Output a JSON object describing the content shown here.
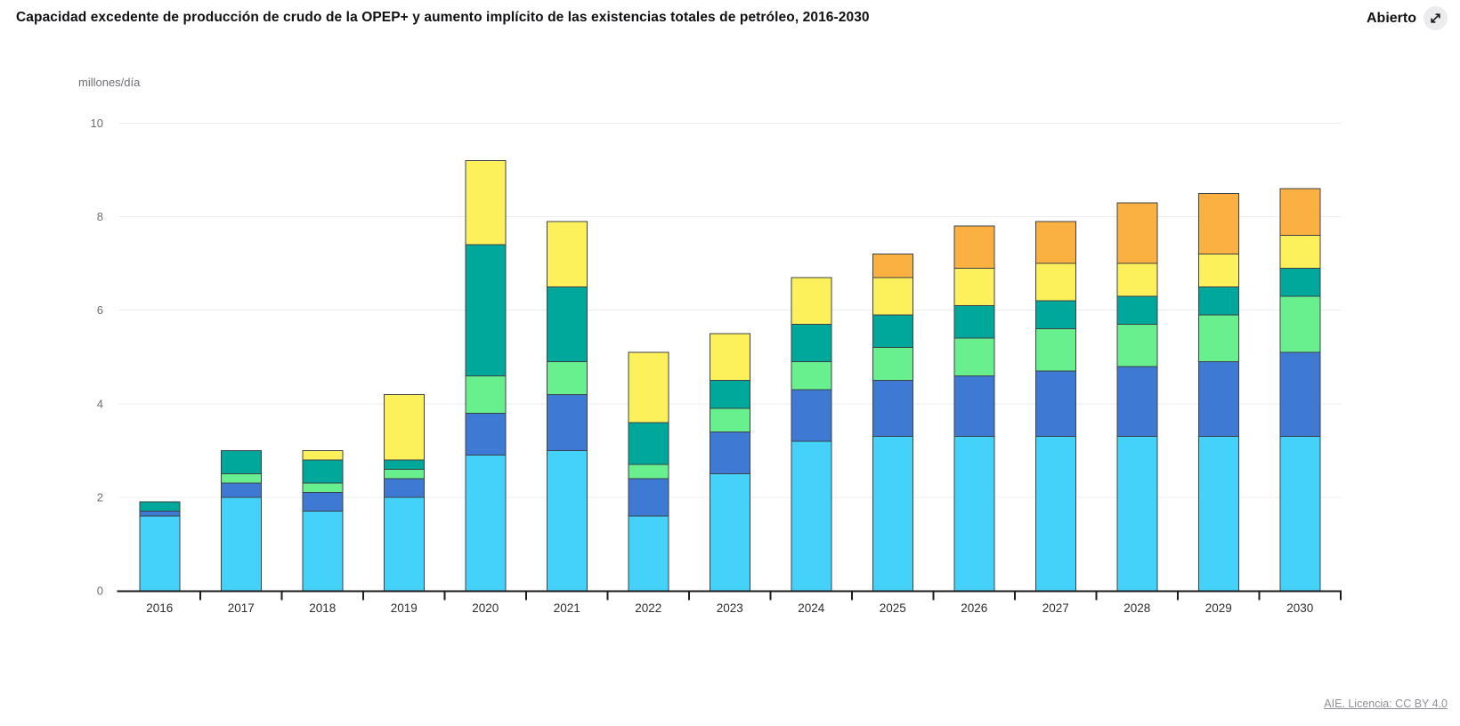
{
  "header": {
    "title": "Capacidad excedente de producción de crudo de la OPEP+ y aumento implícito de las existencias totales de petróleo, 2016-2030",
    "open_label": "Abierto"
  },
  "footer": {
    "attribution": "AIE. Licencia: CC BY 4.0"
  },
  "style": {
    "grid_color": "#ededee",
    "axis_color": "#1a1b1e",
    "segment_border_color": "#3c4147",
    "tick_label_color": "#6d6d74",
    "year_label_color": "#2c2c31",
    "icon_circle_color": "#ececee"
  },
  "chart_data": {
    "type": "bar",
    "stacked": true,
    "title": "Capacidad excedente de producción de crudo de la OPEP+ y aumento implícito de las existencias totales de petróleo, 2016-2030",
    "unit_label": "millones/día",
    "xlabel": "",
    "ylabel": "millones/día",
    "ylim": [
      0,
      10
    ],
    "yticks": [
      0,
      2,
      4,
      6,
      8,
      10
    ],
    "grid": "horizontal",
    "legend_visible": false,
    "categories": [
      "2016",
      "2017",
      "2018",
      "2019",
      "2020",
      "2021",
      "2022",
      "2023",
      "2024",
      "2025",
      "2026",
      "2027",
      "2028",
      "2029",
      "2030"
    ],
    "series": [
      {
        "name": "light-blue-segment",
        "color": "#45D2FA",
        "values": [
          1.6,
          2.0,
          1.7,
          2.0,
          2.9,
          3.0,
          1.6,
          2.5,
          3.2,
          3.3,
          3.3,
          3.3,
          3.3,
          3.3,
          3.3
        ]
      },
      {
        "name": "dark-blue-segment",
        "color": "#3E7AD3",
        "values": [
          0.1,
          0.3,
          0.4,
          0.4,
          0.9,
          1.2,
          0.8,
          0.9,
          1.1,
          1.2,
          1.3,
          1.4,
          1.5,
          1.6,
          1.8
        ]
      },
      {
        "name": "light-green-segment",
        "color": "#68F08F",
        "values": [
          0.0,
          0.2,
          0.2,
          0.2,
          0.8,
          0.7,
          0.3,
          0.5,
          0.6,
          0.7,
          0.8,
          0.9,
          0.9,
          1.0,
          1.2
        ]
      },
      {
        "name": "teal-segment",
        "color": "#00A79B",
        "values": [
          0.2,
          0.5,
          0.5,
          0.2,
          2.8,
          1.6,
          0.9,
          0.6,
          0.8,
          0.7,
          0.7,
          0.6,
          0.6,
          0.6,
          0.6
        ]
      },
      {
        "name": "yellow-segment",
        "color": "#FCF15B",
        "values": [
          0.0,
          0.0,
          0.2,
          1.4,
          1.8,
          1.4,
          1.5,
          1.0,
          1.0,
          0.8,
          0.8,
          0.8,
          0.7,
          0.7,
          0.7
        ]
      },
      {
        "name": "orange-segment",
        "color": "#FBB042",
        "values": [
          0.0,
          0.0,
          0.0,
          0.0,
          0.0,
          0.0,
          0.0,
          0.0,
          0.0,
          0.5,
          0.9,
          0.9,
          1.3,
          1.3,
          1.0
        ]
      }
    ],
    "totals": [
      1.9,
      3.0,
      3.0,
      4.2,
      9.2,
      7.9,
      5.1,
      5.5,
      6.7,
      7.2,
      7.8,
      7.9,
      8.3,
      8.5,
      8.6
    ]
  }
}
